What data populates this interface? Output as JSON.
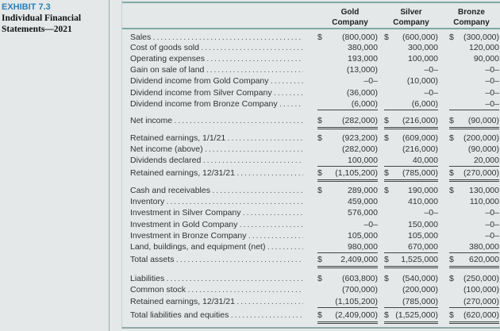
{
  "exhibit": {
    "label": "EXHIBIT 7.3",
    "title": "Individual Financial Statements—2021"
  },
  "columns": [
    "Gold Company",
    "Silver Company",
    "Bronze Company"
  ],
  "columns_split": [
    [
      "Gold",
      "Company"
    ],
    [
      "Silver",
      "Company"
    ],
    [
      "Bronze",
      "Company"
    ]
  ],
  "rows": [
    {
      "label": "Sales",
      "values": [
        "(800,000)",
        "(600,000)",
        "(300,000)"
      ],
      "dollar": true
    },
    {
      "label": "Cost of goods sold",
      "values": [
        "380,000",
        "300,000",
        "120,000"
      ]
    },
    {
      "label": "Operating expenses",
      "values": [
        "193,000",
        "100,000",
        "90,000"
      ]
    },
    {
      "label": "Gain on sale of land",
      "values": [
        "(13,000)",
        "–0–",
        "–0–"
      ]
    },
    {
      "label": "Dividend income from Gold Company",
      "values": [
        "–0–",
        "(10,000)",
        "–0–"
      ]
    },
    {
      "label": "Dividend income from Silver Company",
      "values": [
        "(36,000)",
        "–0–",
        "–0–"
      ]
    },
    {
      "label": "Dividend income from Bronze Company",
      "values": [
        "(6,000)",
        "(6,000)",
        "–0–"
      ]
    },
    {
      "label": "Net income",
      "values": [
        "(282,000)",
        "(216,000)",
        "(90,000)"
      ],
      "dollar": true,
      "total": true
    },
    {
      "label": "Retained earnings, 1/1/21",
      "values": [
        "(923,200)",
        "(609,000)",
        "(200,000)"
      ],
      "dollar": true
    },
    {
      "label": "Net income (above)",
      "values": [
        "(282,000)",
        "(216,000)",
        "(90,000)"
      ]
    },
    {
      "label": "Dividends declared",
      "values": [
        "100,000",
        "40,000",
        "20,000"
      ]
    },
    {
      "label": "Retained earnings, 12/31/21",
      "values": [
        "(1,105,200)",
        "(785,000)",
        "(270,000)"
      ],
      "dollar": true,
      "total": true
    },
    {
      "label": "Cash and receivables",
      "values": [
        "289,000",
        "190,000",
        "130,000"
      ],
      "dollar": true
    },
    {
      "label": "Inventory",
      "values": [
        "459,000",
        "410,000",
        "110,000"
      ]
    },
    {
      "label": "Investment in Silver Company",
      "values": [
        "576,000",
        "–0–",
        "–0–"
      ]
    },
    {
      "label": "Investment in Gold Company",
      "values": [
        "–0–",
        "150,000",
        "–0–"
      ]
    },
    {
      "label": "Investment in Bronze Company",
      "values": [
        "105,000",
        "105,000",
        "–0–"
      ]
    },
    {
      "label": "Land, buildings, and equipment (net)",
      "values": [
        "980,000",
        "670,000",
        "380,000"
      ]
    },
    {
      "label": "Total assets",
      "values": [
        "2,409,000",
        "1,525,000",
        "620,000"
      ],
      "dollar": true,
      "total": true
    },
    {
      "label": "Liabilities",
      "values": [
        "(603,800)",
        "(540,000)",
        "(250,000)"
      ],
      "dollar": true
    },
    {
      "label": "Common stock",
      "values": [
        "(700,000)",
        "(200,000)",
        "(100,000)"
      ]
    },
    {
      "label": "Retained earnings, 12/31/21",
      "values": [
        "(1,105,200)",
        "(785,000)",
        "(270,000)"
      ]
    },
    {
      "label": "Total liabilities and equities",
      "values": [
        "(2,409,000)",
        "(1,525,000)",
        "(620,000)"
      ],
      "dollar": true,
      "total": true
    }
  ],
  "currency_symbol": "$"
}
